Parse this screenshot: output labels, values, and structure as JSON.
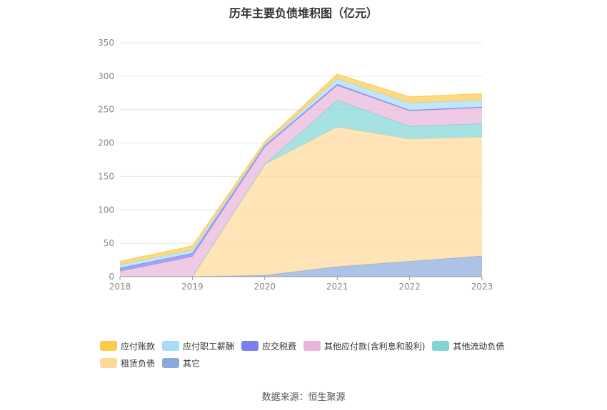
{
  "title": "历年主要负债堆积图（亿元）",
  "source": "数据来源：恒生聚源",
  "chart_data": {
    "type": "area",
    "stacked": true,
    "x": [
      "2018",
      "2019",
      "2020",
      "2021",
      "2022",
      "2023"
    ],
    "ylim": [
      0,
      350
    ],
    "yticks": [
      0,
      50,
      100,
      150,
      200,
      250,
      300,
      350
    ],
    "grid": true,
    "legend_position": "bottom",
    "series": [
      {
        "name": "其它",
        "color": "#8aa9db",
        "values": [
          0,
          0,
          2,
          15,
          23,
          31
        ]
      },
      {
        "name": "租赁负债",
        "color": "#ffd898",
        "values": [
          0,
          0,
          166,
          209,
          183,
          178
        ]
      },
      {
        "name": "其他流动负债",
        "color": "#7fd6d4",
        "values": [
          0,
          0,
          0,
          40,
          19,
          20
        ]
      },
      {
        "name": "其他应付款(含利息和股利)",
        "color": "#e8b4d9",
        "values": [
          8,
          30,
          26,
          22,
          23,
          24
        ]
      },
      {
        "name": "应交税费",
        "color": "#7a7ef0",
        "values": [
          5,
          5,
          2,
          2,
          1,
          1
        ]
      },
      {
        "name": "应付职工薪酬",
        "color": "#a6dcf7",
        "values": [
          5,
          5,
          2,
          8,
          11,
          10
        ]
      },
      {
        "name": "应付账款",
        "color": "#fcc94b",
        "values": [
          5,
          6,
          4,
          7,
          9,
          10
        ]
      }
    ]
  },
  "legend": {
    "row1": [
      {
        "name": "应付账款",
        "color": "#fcc94b"
      },
      {
        "name": "应付职工薪酬",
        "color": "#a6dcf7"
      },
      {
        "name": "应交税费",
        "color": "#7a7ef0"
      },
      {
        "name": "其他应付款(含利息和股利)",
        "color": "#e8b4d9"
      },
      {
        "name": "其他流动负债",
        "color": "#7fd6d4"
      }
    ],
    "row2": [
      {
        "name": "租赁负债",
        "color": "#ffd898"
      },
      {
        "name": "其它",
        "color": "#8aa9db"
      }
    ]
  }
}
